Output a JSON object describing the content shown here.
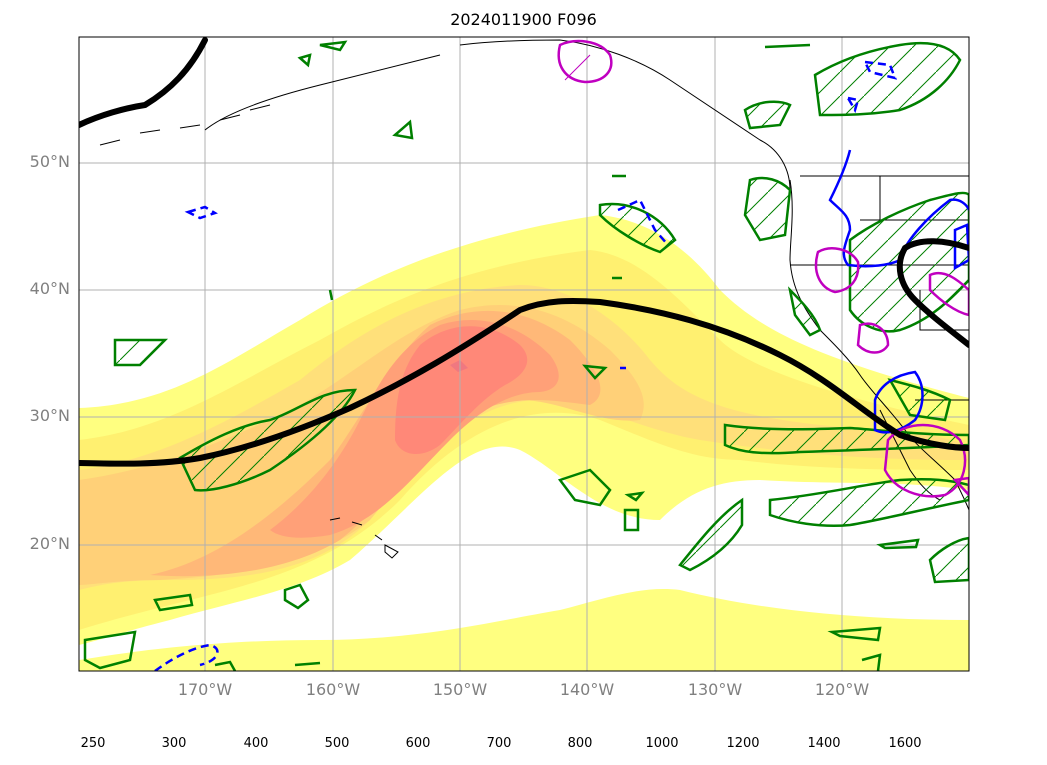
{
  "title": "2024011900 F096",
  "map": {
    "lat_labels": [
      {
        "lat": 50,
        "label": "50°N"
      },
      {
        "lat": 40,
        "label": "40°N"
      },
      {
        "lat": 30,
        "label": "30°N"
      },
      {
        "lat": 20,
        "label": "20°N"
      }
    ],
    "lon_labels": [
      {
        "lon": -170,
        "label": "170°W"
      },
      {
        "lon": -160,
        "label": "160°W"
      },
      {
        "lon": -150,
        "label": "150°W"
      },
      {
        "lon": -140,
        "label": "140°W"
      },
      {
        "lon": -130,
        "label": "130°W"
      },
      {
        "lon": -120,
        "label": "120°W"
      }
    ],
    "extent": {
      "lon_min": -180,
      "lon_max": -110,
      "lat_min": 10,
      "lat_max": 60
    },
    "gridlines": true
  },
  "colorbar": {
    "levels": [
      "250",
      "300",
      "400",
      "500",
      "600",
      "700",
      "800",
      "1000",
      "1200",
      "1400",
      "1600"
    ],
    "colors": [
      "#ffffff",
      "#ffff80",
      "#fff070",
      "#ffe07a",
      "#ffd078",
      "#ffb878",
      "#ffa078",
      "#ff8878",
      "#f07880",
      "#d87890",
      "#b880b8",
      "#a880c8"
    ],
    "extend": "max"
  },
  "colors": {
    "jet": "#000000",
    "contour_green": "#008000",
    "contour_blue": "#0000ff",
    "contour_magenta": "#c000c0",
    "grid": "#b0b0b0"
  }
}
